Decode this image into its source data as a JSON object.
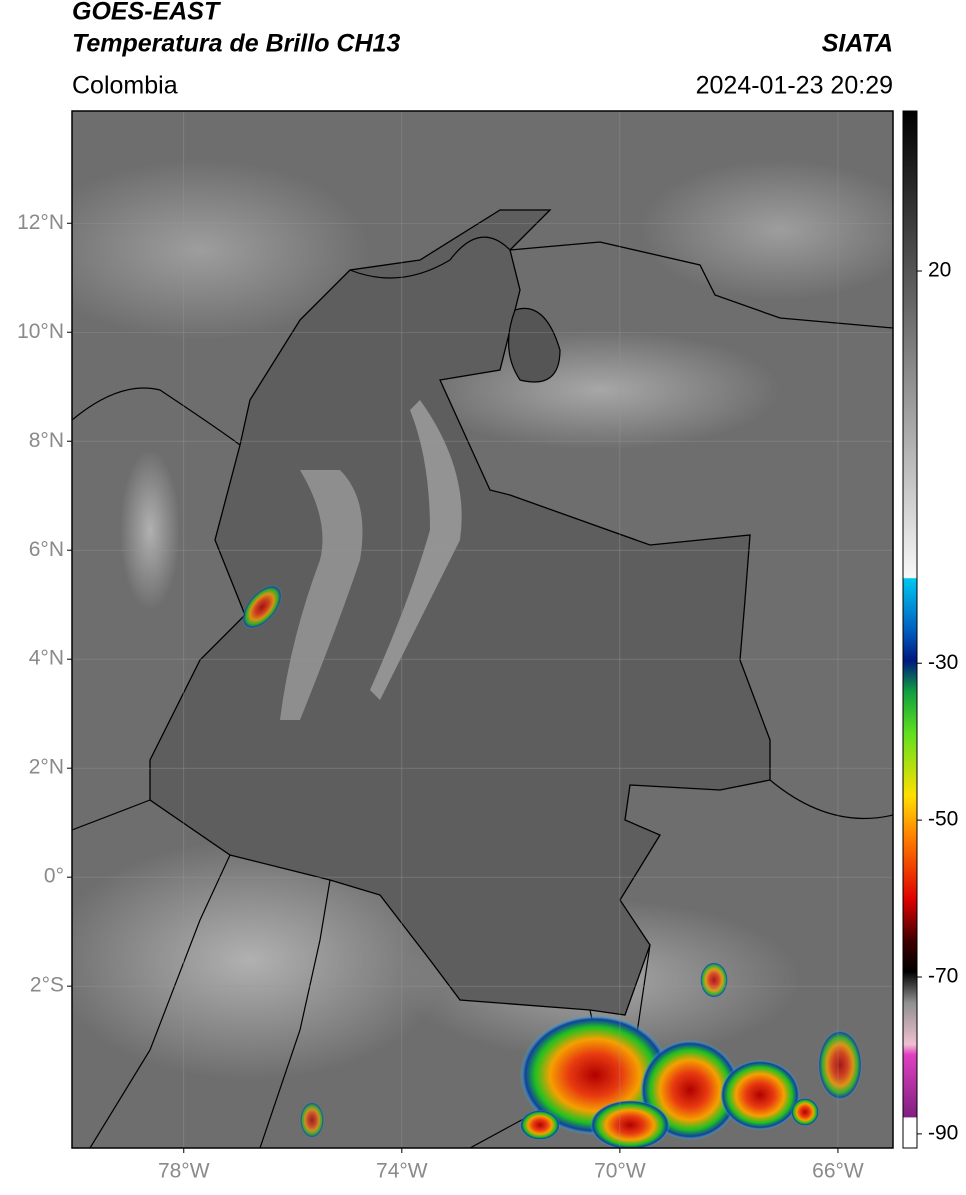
{
  "header": {
    "satellite": "GOES-EAST",
    "product": "Temperatura de Brillo CH13",
    "source": "SIATA",
    "region": "Colombia",
    "datetime": "2024-01-23 20:29"
  },
  "map": {
    "xlim": [
      -80.05,
      -64.99
    ],
    "ylim": [
      -4.97,
      14.06
    ],
    "xticks": [
      {
        "value": -78,
        "label": "78°W"
      },
      {
        "value": -74,
        "label": "74°W"
      },
      {
        "value": -70,
        "label": "70°W"
      },
      {
        "value": -66,
        "label": "66°W"
      }
    ],
    "yticks": [
      {
        "value": 12,
        "label": "12°N"
      },
      {
        "value": 10,
        "label": "10°N"
      },
      {
        "value": 8,
        "label": "8°N"
      },
      {
        "value": 6,
        "label": "6°N"
      },
      {
        "value": 4,
        "label": "4°N"
      },
      {
        "value": 2,
        "label": "2°N"
      },
      {
        "value": 0,
        "label": "0°"
      },
      {
        "value": -2,
        "label": "2°S"
      }
    ],
    "grid": true
  },
  "colorbar": {
    "lim": [
      -91.8,
      40.4
    ],
    "ticks": [
      20,
      -30,
      -50,
      -70,
      -90
    ]
  }
}
